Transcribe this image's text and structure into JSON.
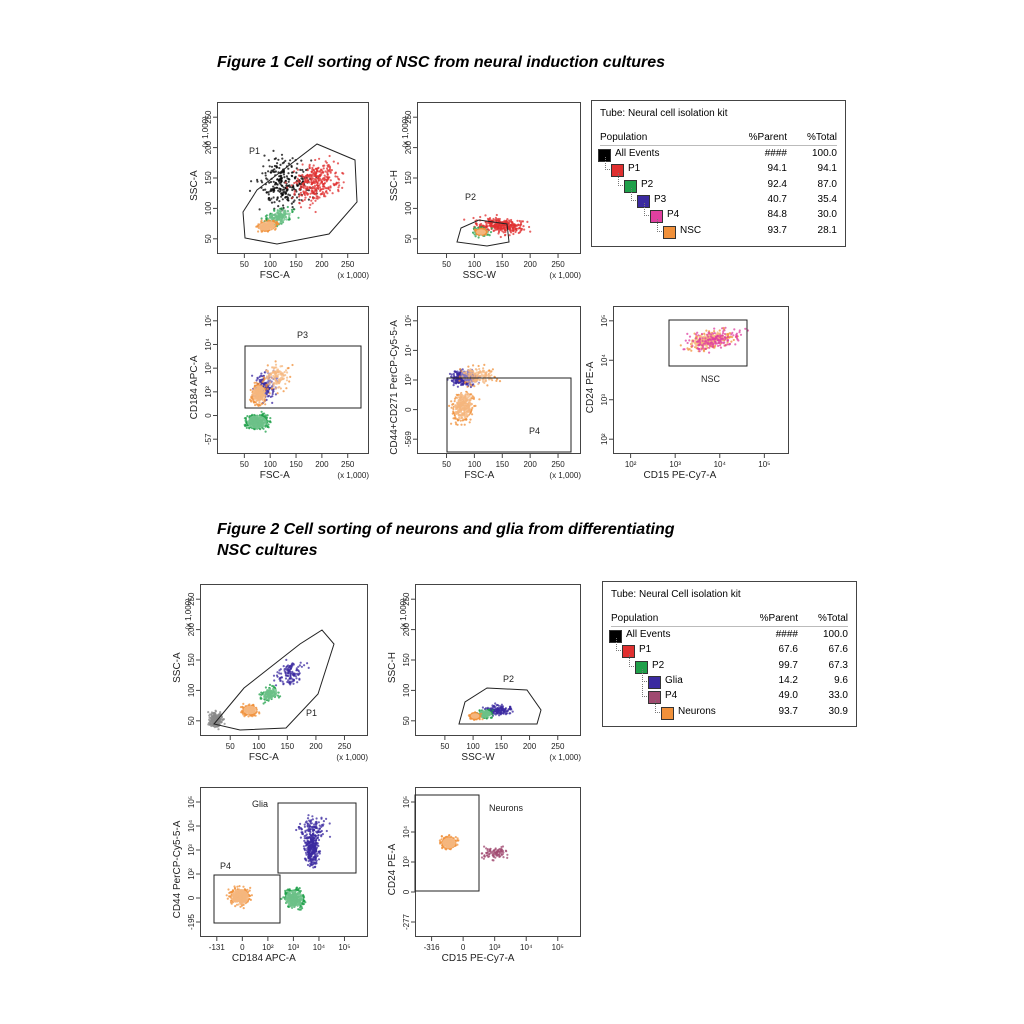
{
  "figure1_title": "Figure 1  Cell sorting of NSC from neural induction cultures",
  "figure2_title": "Figure 2  Cell sorting of neurons and glia from differentiating NSC cultures",
  "figure2_title_line1": "Figure 2  Cell sorting of neurons and glia from differentiating",
  "figure2_title_line2": "NSC cultures",
  "colors": {
    "all_events": "#000000",
    "P1": "#e03030",
    "P2": "#1fa04a",
    "P3": "#3b2aa0",
    "P4": "#e040a0",
    "NSC": "#f0903a",
    "Glia": "#3b2aa0",
    "P4_fig2": "#a04a70",
    "Neurons": "#f0903a",
    "debris": "#8a8a8a"
  },
  "tables": [
    {
      "tube_label": "Tube:",
      "tube_name": "Neural cell isolation kit",
      "headers": [
        "Population",
        "%Parent",
        "%Total"
      ],
      "rows": [
        {
          "name": "All Events",
          "parent": "####",
          "total": "100.0",
          "level": 0,
          "color": "#000000"
        },
        {
          "name": "P1",
          "parent": "94.1",
          "total": "94.1",
          "level": 1,
          "color": "#e03030"
        },
        {
          "name": "P2",
          "parent": "92.4",
          "total": "87.0",
          "level": 2,
          "color": "#1fa04a"
        },
        {
          "name": "P3",
          "parent": "40.7",
          "total": "35.4",
          "level": 3,
          "color": "#3b2aa0"
        },
        {
          "name": "P4",
          "parent": "84.8",
          "total": "30.0",
          "level": 4,
          "color": "#e040a0"
        },
        {
          "name": "NSC",
          "parent": "93.7",
          "total": "28.1",
          "level": 5,
          "color": "#f0903a"
        }
      ]
    },
    {
      "tube_label": "Tube:",
      "tube_name": "Neural Cell isolation kit",
      "headers": [
        "Population",
        "%Parent",
        "%Total"
      ],
      "rows": [
        {
          "name": "All Events",
          "parent": "####",
          "total": "100.0",
          "level": 0,
          "color": "#000000"
        },
        {
          "name": "P1",
          "parent": "67.6",
          "total": "67.6",
          "level": 1,
          "color": "#e03030"
        },
        {
          "name": "P2",
          "parent": "99.7",
          "total": "67.3",
          "level": 2,
          "color": "#1fa04a"
        },
        {
          "name": "Glia",
          "parent": "14.2",
          "total": "9.6",
          "level": 3,
          "color": "#3b2aa0"
        },
        {
          "name": "P4",
          "parent": "49.0",
          "total": "33.0",
          "level": 3,
          "color": "#a04a70"
        },
        {
          "name": "Neurons",
          "parent": "93.7",
          "total": "30.9",
          "level": 4,
          "color": "#f0903a"
        }
      ]
    }
  ],
  "chart_data": [
    {
      "type": "scatter",
      "figure": 1,
      "panel": "fsc-ssc",
      "xlabel": "FSC-A",
      "ylabel": "SSC-A",
      "x_multiplier": "(x 1,000)",
      "y_multiplier": "(x 1,000)",
      "xlim": [
        0,
        262
      ],
      "ylim": [
        0,
        262
      ],
      "x_ticks": [
        "50",
        "100",
        "150",
        "200",
        "250"
      ],
      "y_ticks": [
        "50",
        "100",
        "150",
        "200",
        "250"
      ],
      "gates": [
        {
          "name": "P1"
        }
      ],
      "populations": [
        {
          "name": "All Events",
          "center": [
            40,
            60
          ],
          "color": "#000000"
        },
        {
          "name": "P1",
          "center": [
            110,
            90
          ],
          "color": "#e03030"
        },
        {
          "name": "P2",
          "center": [
            80,
            45
          ],
          "color": "#1fa04a"
        },
        {
          "name": "NSC",
          "center": [
            70,
            35
          ],
          "color": "#f0903a"
        }
      ]
    },
    {
      "type": "scatter",
      "figure": 1,
      "panel": "ssc-w-h",
      "xlabel": "SSC-W",
      "ylabel": "SSC-H",
      "x_multiplier": "(x 1,000)",
      "y_multiplier": "(x 1,000)",
      "xlim": [
        0,
        262
      ],
      "ylim": [
        0,
        262
      ],
      "x_ticks": [
        "50",
        "100",
        "150",
        "200",
        "250"
      ],
      "y_ticks": [
        "50",
        "100",
        "150",
        "200",
        "250"
      ],
      "gates": [
        {
          "name": "P2"
        }
      ],
      "populations": [
        {
          "name": "P1",
          "center": [
            120,
            40
          ],
          "color": "#e03030"
        },
        {
          "name": "NSC",
          "center": [
            95,
            28
          ],
          "color": "#f0903a"
        }
      ]
    },
    {
      "type": "scatter",
      "figure": 1,
      "panel": "fsc-cd184",
      "xlabel": "FSC-A",
      "ylabel": "CD184 APC-A",
      "x_multiplier": "(x 1,000)",
      "xlim": [
        0,
        262
      ],
      "x_ticks": [
        "50",
        "100",
        "150",
        "200",
        "250"
      ],
      "y_ticks": [
        "-57",
        "0",
        "10²",
        "10³",
        "10⁴",
        "10⁵"
      ],
      "gates": [
        {
          "name": "P3"
        }
      ],
      "populations": [
        {
          "name": "P2",
          "color": "#1fa04a"
        },
        {
          "name": "P3",
          "color": "#3b2aa0"
        },
        {
          "name": "NSC",
          "color": "#f0903a"
        }
      ]
    },
    {
      "type": "scatter",
      "figure": 1,
      "panel": "fsc-cd44",
      "xlabel": "FSC-A",
      "ylabel": "CD44+CD271 PerCP-Cy5-5-A",
      "x_multiplier": "(x 1,000)",
      "xlim": [
        0,
        262
      ],
      "x_ticks": [
        "50",
        "100",
        "150",
        "200",
        "250"
      ],
      "y_ticks": [
        "-569",
        "0",
        "10³",
        "10⁴",
        "10⁵"
      ],
      "gates": [
        {
          "name": "P4"
        }
      ],
      "populations": [
        {
          "name": "P3",
          "color": "#3b2aa0"
        },
        {
          "name": "NSC",
          "color": "#f0903a"
        }
      ]
    },
    {
      "type": "scatter",
      "figure": 1,
      "panel": "cd15-cd24",
      "xlabel": "CD15 PE-Cy7-A",
      "ylabel": "CD24 PE-A",
      "x_ticks": [
        "10²",
        "10³",
        "10⁴",
        "10⁵"
      ],
      "y_ticks": [
        "10²",
        "10³",
        "10⁴",
        "10⁵"
      ],
      "gates": [
        {
          "name": "NSC"
        }
      ],
      "populations": [
        {
          "name": "P4",
          "color": "#e040a0"
        },
        {
          "name": "NSC",
          "color": "#f0903a"
        }
      ]
    },
    {
      "type": "scatter",
      "figure": 2,
      "panel": "fsc-ssc",
      "xlabel": "FSC-A",
      "ylabel": "SSC-A",
      "x_multiplier": "(x 1,000)",
      "y_multiplier": "(x 1,000)",
      "xlim": [
        0,
        262
      ],
      "ylim": [
        0,
        262
      ],
      "x_ticks": [
        "50",
        "100",
        "150",
        "200",
        "250"
      ],
      "y_ticks": [
        "50",
        "100",
        "150",
        "200",
        "250"
      ],
      "gates": [
        {
          "name": "P1"
        }
      ],
      "populations": [
        {
          "name": "All Events",
          "color": "#8a8a8a"
        },
        {
          "name": "P1",
          "color": "#3b2aa0"
        },
        {
          "name": "P2",
          "color": "#1fa04a"
        },
        {
          "name": "Neurons",
          "color": "#f0903a"
        }
      ]
    },
    {
      "type": "scatter",
      "figure": 2,
      "panel": "ssc-w-h",
      "xlabel": "SSC-W",
      "ylabel": "SSC-H",
      "x_multiplier": "(x 1,000)",
      "y_multiplier": "(x 1,000)",
      "xlim": [
        0,
        262
      ],
      "ylim": [
        0,
        262
      ],
      "x_ticks": [
        "50",
        "100",
        "150",
        "200",
        "250"
      ],
      "y_ticks": [
        "50",
        "100",
        "150",
        "200",
        "250"
      ],
      "gates": [
        {
          "name": "P2"
        }
      ],
      "populations": [
        {
          "name": "P1",
          "color": "#3b2aa0"
        },
        {
          "name": "Neurons",
          "color": "#f0903a"
        }
      ]
    },
    {
      "type": "scatter",
      "figure": 2,
      "panel": "cd184-cd44",
      "xlabel": "CD184 APC-A",
      "ylabel": "CD44 PerCP-Cy5-5-A",
      "x_ticks": [
        "-131",
        "0",
        "10²",
        "10³",
        "10⁴",
        "10⁵"
      ],
      "y_ticks": [
        "-195",
        "0",
        "10²",
        "10³",
        "10⁴",
        "10⁵"
      ],
      "gates": [
        {
          "name": "Glia"
        },
        {
          "name": "P4"
        }
      ],
      "populations": [
        {
          "name": "P2",
          "color": "#1fa04a"
        },
        {
          "name": "Glia",
          "color": "#3b2aa0"
        },
        {
          "name": "Neurons",
          "color": "#f0903a"
        }
      ]
    },
    {
      "type": "scatter",
      "figure": 2,
      "panel": "cd15-cd24",
      "xlabel": "CD15 PE-Cy7-A",
      "ylabel": "CD24 PE-A",
      "x_ticks": [
        "-316",
        "0",
        "10³",
        "10⁴",
        "10⁵"
      ],
      "y_ticks": [
        "-277",
        "0",
        "10³",
        "10⁴",
        "10⁵"
      ],
      "gates": [
        {
          "name": "Neurons"
        }
      ],
      "populations": [
        {
          "name": "P4",
          "color": "#a04a70"
        },
        {
          "name": "Neurons",
          "color": "#f0903a"
        }
      ]
    }
  ]
}
